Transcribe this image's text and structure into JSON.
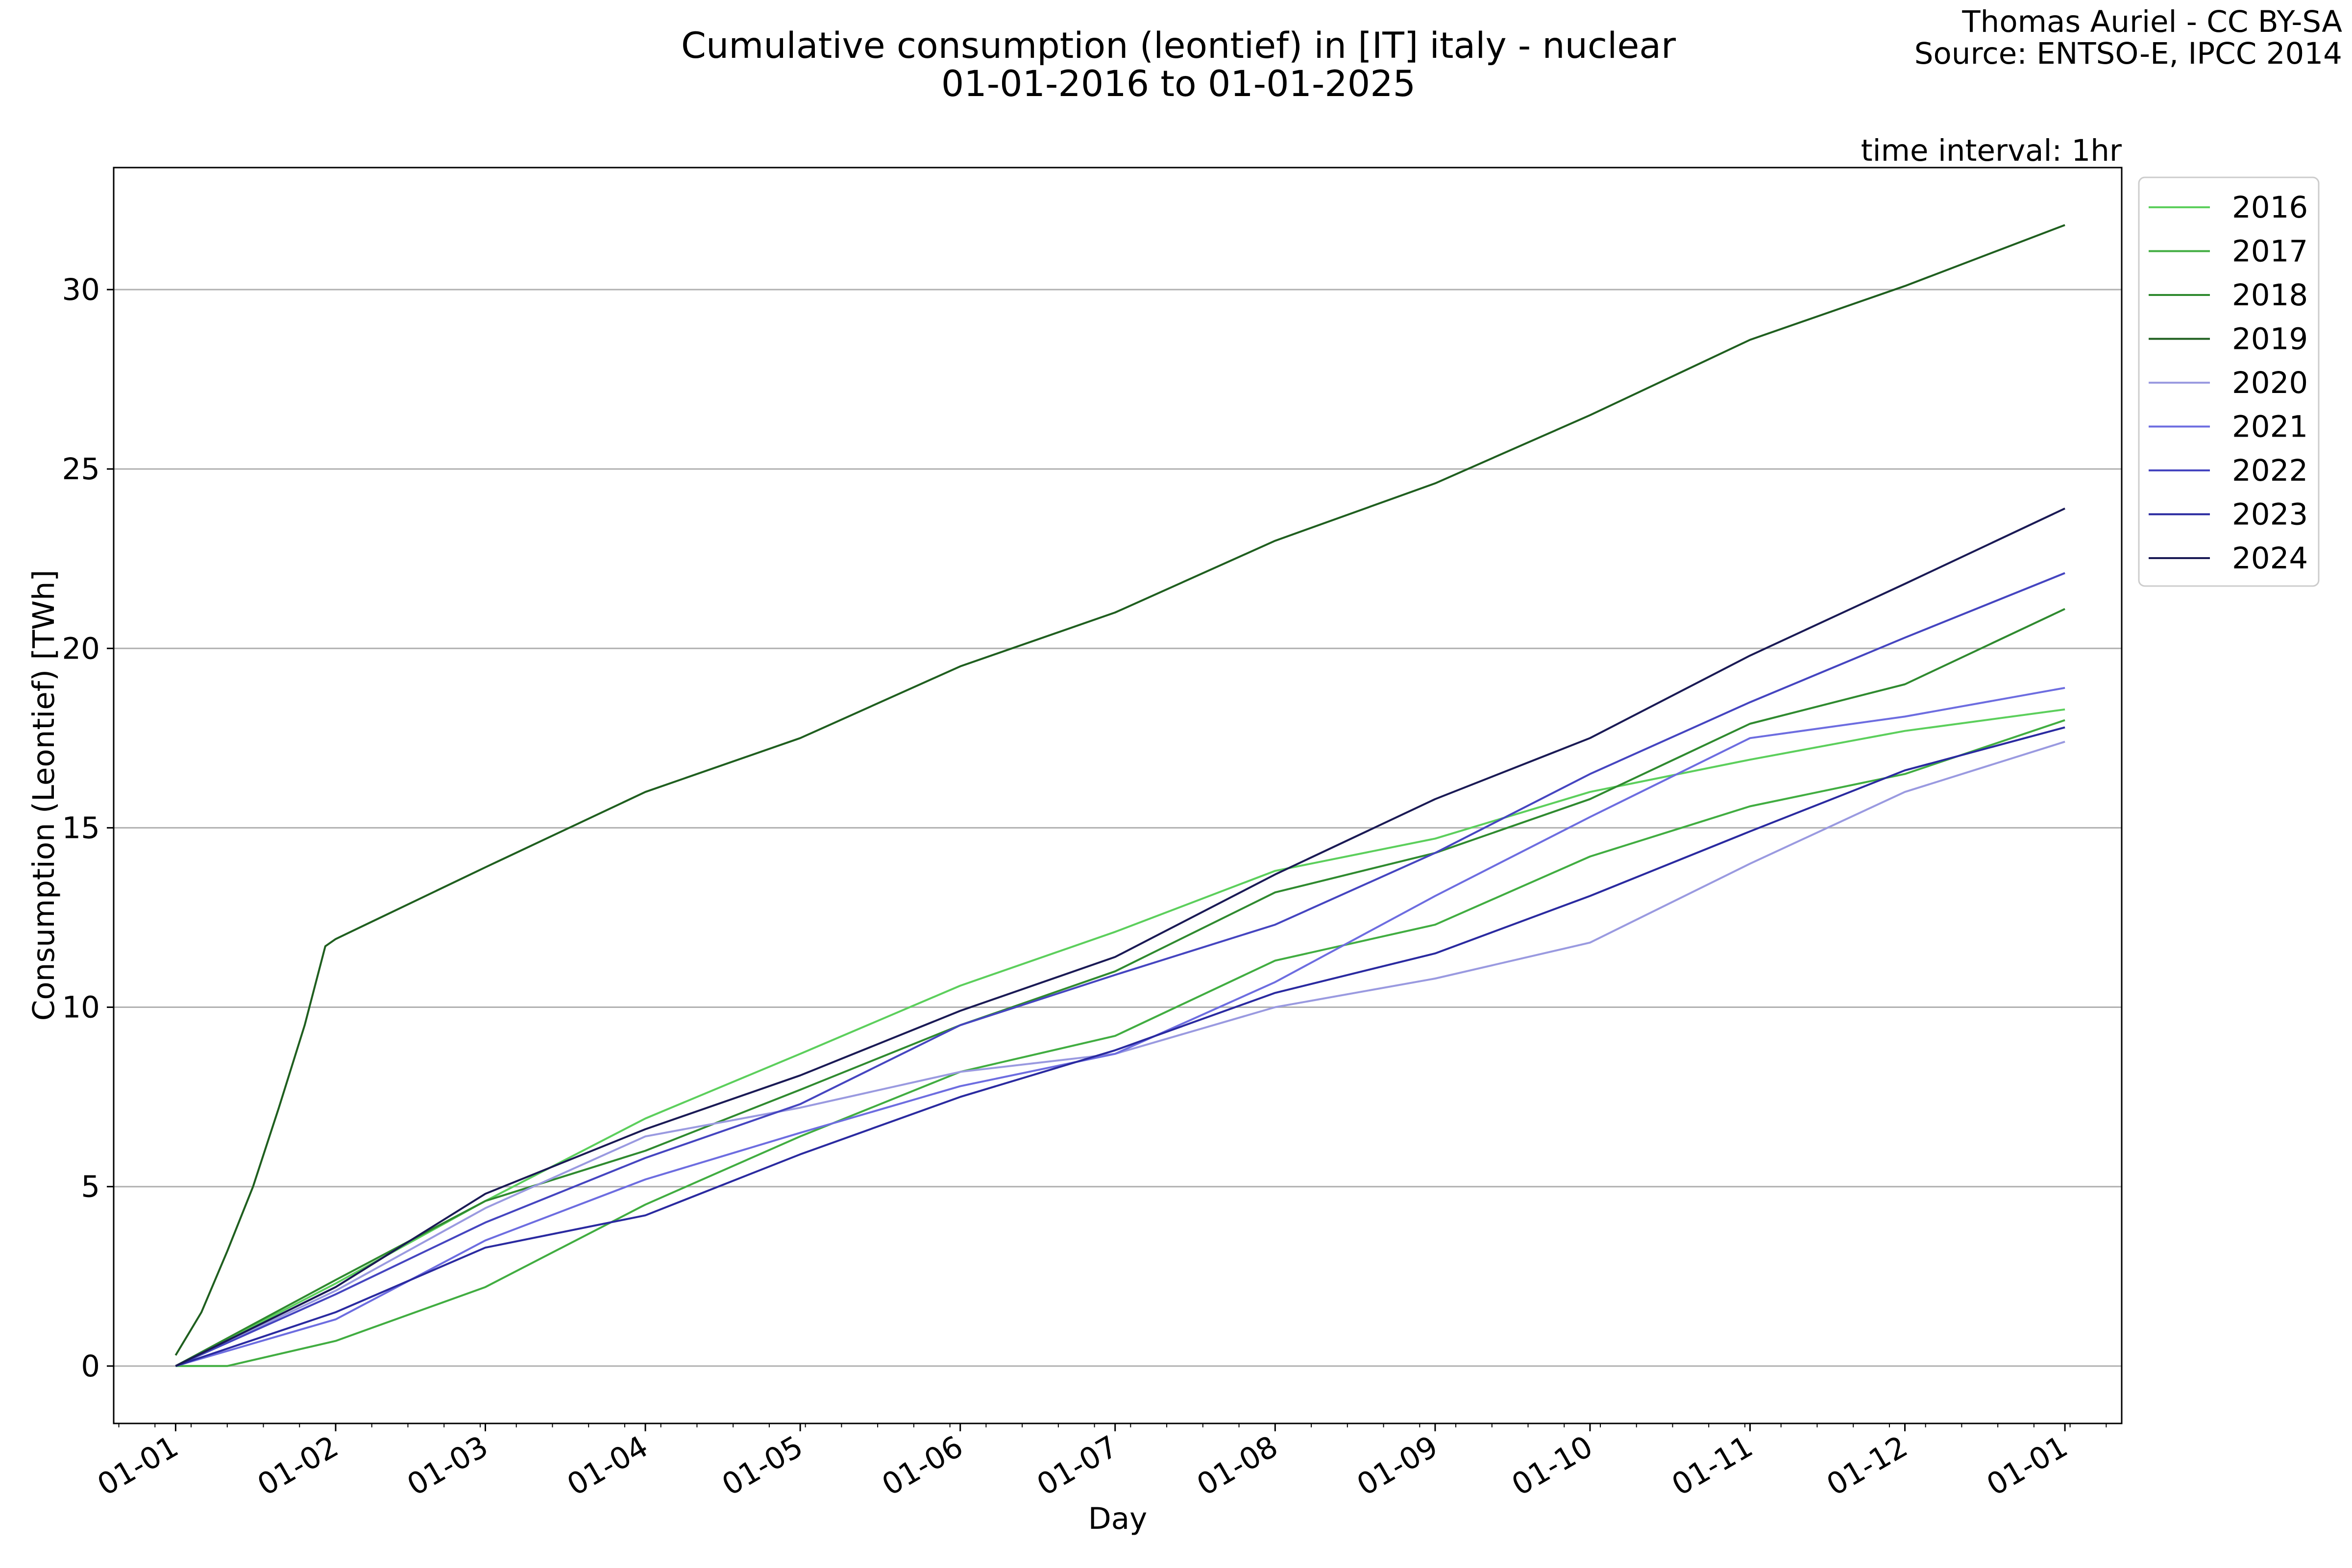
{
  "figure": {
    "title_line1": "Cumulative consumption (leontief) in [IT] italy - nuclear",
    "title_line2": "01-01-2016 to 01-01-2025",
    "credit_line1": "Thomas Auriel - CC BY-SA",
    "credit_line2": "Source: ENTSO-E, IPCC 2014",
    "interval_note": "time interval: 1hr"
  },
  "chart_data": {
    "type": "line",
    "title": "Cumulative consumption (leontief) in [IT] italy - nuclear\n01-01-2016 to 01-01-2025",
    "xlabel": "Day",
    "ylabel": "Consumption (Leontief) [TWh]",
    "x_unit": "day of year",
    "xlim": [
      -12,
      377
    ],
    "ylim": [
      -1.6,
      33.4
    ],
    "grid": "y-major",
    "legend_position": "outside top-right",
    "x_tick_values": [
      0,
      31,
      60,
      91,
      121,
      152,
      182,
      213,
      244,
      274,
      305,
      335,
      366
    ],
    "x_tick_labels": [
      "01-01",
      "01-02",
      "01-03",
      "01-04",
      "01-05",
      "01-06",
      "01-07",
      "01-08",
      "01-09",
      "01-10",
      "01-11",
      "01-12",
      "01-01"
    ],
    "y_ticks": [
      0,
      5,
      10,
      15,
      20,
      25,
      30
    ],
    "series": [
      {
        "name": "2016",
        "color": "#5ccf5c",
        "points": [
          [
            0,
            0
          ],
          [
            31,
            2.3
          ],
          [
            60,
            4.6
          ],
          [
            91,
            6.9
          ],
          [
            121,
            8.7
          ],
          [
            152,
            10.6
          ],
          [
            182,
            12.1
          ],
          [
            213,
            13.8
          ],
          [
            244,
            14.7
          ],
          [
            274,
            16.0
          ],
          [
            305,
            16.9
          ],
          [
            335,
            17.7
          ],
          [
            366,
            18.3
          ]
        ]
      },
      {
        "name": "2017",
        "color": "#41ad41",
        "points": [
          [
            0,
            0
          ],
          [
            10,
            0
          ],
          [
            31,
            0.7
          ],
          [
            60,
            2.2
          ],
          [
            91,
            4.5
          ],
          [
            121,
            6.4
          ],
          [
            152,
            8.2
          ],
          [
            182,
            9.2
          ],
          [
            213,
            11.3
          ],
          [
            244,
            12.3
          ],
          [
            274,
            14.2
          ],
          [
            305,
            15.6
          ],
          [
            335,
            16.5
          ],
          [
            366,
            18.0
          ]
        ]
      },
      {
        "name": "2018",
        "color": "#2f8a2f",
        "points": [
          [
            0,
            0
          ],
          [
            31,
            2.4
          ],
          [
            60,
            4.6
          ],
          [
            91,
            6.0
          ],
          [
            121,
            7.7
          ],
          [
            152,
            9.5
          ],
          [
            182,
            11.0
          ],
          [
            213,
            13.2
          ],
          [
            244,
            14.3
          ],
          [
            274,
            15.8
          ],
          [
            305,
            17.9
          ],
          [
            335,
            19.0
          ],
          [
            366,
            21.1
          ]
        ]
      },
      {
        "name": "2019",
        "color": "#1f5f1f",
        "points": [
          [
            0,
            0.3
          ],
          [
            5,
            1.5
          ],
          [
            10,
            3.2
          ],
          [
            15,
            5.0
          ],
          [
            20,
            7.2
          ],
          [
            25,
            9.5
          ],
          [
            29,
            11.7
          ],
          [
            31,
            11.9
          ],
          [
            60,
            13.9
          ],
          [
            91,
            16.0
          ],
          [
            121,
            17.5
          ],
          [
            152,
            19.5
          ],
          [
            182,
            21.0
          ],
          [
            213,
            23.0
          ],
          [
            244,
            24.6
          ],
          [
            274,
            26.5
          ],
          [
            305,
            28.6
          ],
          [
            335,
            30.1
          ],
          [
            366,
            31.8
          ]
        ]
      },
      {
        "name": "2020",
        "color": "#9a9ae0",
        "points": [
          [
            0,
            0
          ],
          [
            31,
            2.1
          ],
          [
            60,
            4.4
          ],
          [
            91,
            6.4
          ],
          [
            121,
            7.2
          ],
          [
            152,
            8.2
          ],
          [
            182,
            8.7
          ],
          [
            213,
            10.0
          ],
          [
            244,
            10.8
          ],
          [
            274,
            11.8
          ],
          [
            305,
            14.0
          ],
          [
            335,
            16.0
          ],
          [
            366,
            17.4
          ]
        ]
      },
      {
        "name": "2021",
        "color": "#6d6de0",
        "points": [
          [
            0,
            0
          ],
          [
            31,
            1.3
          ],
          [
            60,
            3.5
          ],
          [
            91,
            5.2
          ],
          [
            121,
            6.5
          ],
          [
            152,
            7.8
          ],
          [
            182,
            8.7
          ],
          [
            213,
            10.7
          ],
          [
            244,
            13.1
          ],
          [
            274,
            15.3
          ],
          [
            305,
            17.5
          ],
          [
            335,
            18.1
          ],
          [
            366,
            18.9
          ]
        ]
      },
      {
        "name": "2022",
        "color": "#4545c0",
        "points": [
          [
            0,
            0
          ],
          [
            31,
            2.0
          ],
          [
            60,
            4.0
          ],
          [
            91,
            5.8
          ],
          [
            121,
            7.3
          ],
          [
            152,
            9.5
          ],
          [
            182,
            10.9
          ],
          [
            213,
            12.3
          ],
          [
            244,
            14.3
          ],
          [
            274,
            16.5
          ],
          [
            305,
            18.5
          ],
          [
            335,
            20.3
          ],
          [
            366,
            22.1
          ]
        ]
      },
      {
        "name": "2023",
        "color": "#2a2aa0",
        "points": [
          [
            0,
            0
          ],
          [
            31,
            1.5
          ],
          [
            60,
            3.3
          ],
          [
            91,
            4.2
          ],
          [
            121,
            5.9
          ],
          [
            152,
            7.5
          ],
          [
            182,
            8.8
          ],
          [
            213,
            10.4
          ],
          [
            244,
            11.5
          ],
          [
            274,
            13.1
          ],
          [
            305,
            14.9
          ],
          [
            335,
            16.6
          ],
          [
            366,
            17.8
          ]
        ]
      },
      {
        "name": "2024",
        "color": "#1a1a55",
        "points": [
          [
            0,
            0
          ],
          [
            31,
            2.2
          ],
          [
            60,
            4.8
          ],
          [
            91,
            6.6
          ],
          [
            121,
            8.1
          ],
          [
            152,
            9.9
          ],
          [
            182,
            11.4
          ],
          [
            213,
            13.7
          ],
          [
            244,
            15.8
          ],
          [
            274,
            17.5
          ],
          [
            305,
            19.8
          ],
          [
            335,
            21.8
          ],
          [
            366,
            23.9
          ]
        ]
      }
    ]
  }
}
